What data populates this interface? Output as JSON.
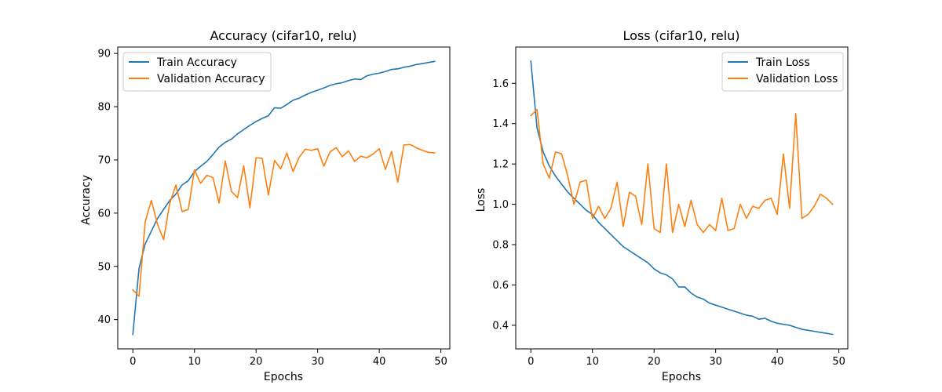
{
  "chart_data": [
    {
      "type": "line",
      "title": "Accuracy (cifar10, relu)",
      "xlabel": "Epochs",
      "ylabel": "Accuracy",
      "xlim": [
        -2.45,
        51.45
      ],
      "ylim": [
        34.5,
        91.2
      ],
      "xticks": [
        0,
        10,
        20,
        30,
        40,
        50
      ],
      "yticks": [
        40,
        50,
        60,
        70,
        80,
        90
      ],
      "grid": false,
      "legend_position": "upper-left",
      "x": [
        0,
        1,
        2,
        3,
        4,
        5,
        6,
        7,
        8,
        9,
        10,
        11,
        12,
        13,
        14,
        15,
        16,
        17,
        18,
        19,
        20,
        21,
        22,
        23,
        24,
        25,
        26,
        27,
        28,
        29,
        30,
        31,
        32,
        33,
        34,
        35,
        36,
        37,
        38,
        39,
        40,
        41,
        42,
        43,
        44,
        45,
        46,
        47,
        48,
        49
      ],
      "series": [
        {
          "name": "Train Accuracy",
          "color": "#1f77b4",
          "values": [
            37.2,
            49.6,
            54.2,
            56.6,
            59.0,
            60.7,
            62.4,
            63.6,
            65.3,
            66.1,
            67.8,
            68.8,
            69.7,
            71.0,
            72.4,
            73.3,
            73.9,
            74.9,
            75.7,
            76.5,
            77.2,
            77.8,
            78.3,
            79.8,
            79.7,
            80.4,
            81.2,
            81.6,
            82.2,
            82.7,
            83.1,
            83.5,
            84.0,
            84.3,
            84.5,
            84.9,
            85.2,
            85.1,
            85.8,
            86.1,
            86.3,
            86.6,
            87.0,
            87.1,
            87.4,
            87.6,
            87.9,
            88.1,
            88.3,
            88.5
          ]
        },
        {
          "name": "Validation Accuracy",
          "color": "#ff7f0e",
          "values": [
            45.6,
            44.4,
            58.3,
            62.4,
            57.9,
            55.0,
            61.9,
            65.3,
            60.3,
            60.7,
            68.1,
            65.6,
            67.1,
            66.7,
            61.9,
            69.8,
            64.1,
            62.9,
            68.9,
            61.0,
            70.4,
            70.3,
            63.4,
            69.9,
            68.3,
            71.3,
            67.8,
            70.5,
            72.0,
            71.8,
            72.1,
            68.8,
            71.5,
            72.3,
            70.6,
            71.7,
            69.7,
            70.7,
            70.4,
            71.1,
            72.1,
            68.2,
            71.6,
            65.8,
            72.8,
            72.9,
            72.3,
            71.8,
            71.4,
            71.3
          ]
        }
      ]
    },
    {
      "type": "line",
      "title": "Loss (cifar10, relu)",
      "xlabel": "Epochs",
      "ylabel": "Loss",
      "xlim": [
        -2.45,
        51.45
      ],
      "ylim": [
        0.283,
        1.78
      ],
      "xticks": [
        0,
        10,
        20,
        30,
        40,
        50
      ],
      "yticks": [
        0.4,
        0.6,
        0.8,
        1.0,
        1.2,
        1.4,
        1.6
      ],
      "ytick_labels": [
        "0.4",
        "0.6",
        "0.8",
        "1.0",
        "1.2",
        "1.4",
        "1.6"
      ],
      "grid": false,
      "legend_position": "upper-right",
      "x": [
        0,
        1,
        2,
        3,
        4,
        5,
        6,
        7,
        8,
        9,
        10,
        11,
        12,
        13,
        14,
        15,
        16,
        17,
        18,
        19,
        20,
        21,
        22,
        23,
        24,
        25,
        26,
        27,
        28,
        29,
        30,
        31,
        32,
        33,
        34,
        35,
        36,
        37,
        38,
        39,
        40,
        41,
        42,
        43,
        44,
        45,
        46,
        47,
        48,
        49
      ],
      "series": [
        {
          "name": "Train Loss",
          "color": "#1f77b4",
          "values": [
            1.71,
            1.38,
            1.26,
            1.19,
            1.14,
            1.1,
            1.06,
            1.03,
            1.0,
            0.97,
            0.95,
            0.91,
            0.88,
            0.85,
            0.82,
            0.79,
            0.77,
            0.75,
            0.73,
            0.71,
            0.68,
            0.66,
            0.65,
            0.63,
            0.59,
            0.59,
            0.56,
            0.54,
            0.53,
            0.51,
            0.5,
            0.49,
            0.48,
            0.47,
            0.46,
            0.45,
            0.445,
            0.43,
            0.435,
            0.42,
            0.41,
            0.405,
            0.4,
            0.39,
            0.38,
            0.375,
            0.37,
            0.365,
            0.36,
            0.355
          ]
        },
        {
          "name": "Validation Loss",
          "color": "#ff7f0e",
          "values": [
            1.44,
            1.47,
            1.2,
            1.13,
            1.26,
            1.25,
            1.14,
            1.0,
            1.11,
            1.12,
            0.93,
            0.99,
            0.93,
            0.98,
            1.11,
            0.89,
            1.06,
            1.04,
            0.9,
            1.2,
            0.88,
            0.86,
            1.2,
            0.86,
            1.0,
            0.89,
            1.02,
            0.9,
            0.86,
            0.9,
            0.87,
            1.03,
            0.87,
            0.88,
            1.0,
            0.93,
            0.99,
            0.98,
            1.02,
            1.03,
            0.95,
            1.25,
            0.98,
            1.45,
            0.93,
            0.95,
            0.99,
            1.05,
            1.03,
            1.0
          ]
        }
      ]
    }
  ]
}
